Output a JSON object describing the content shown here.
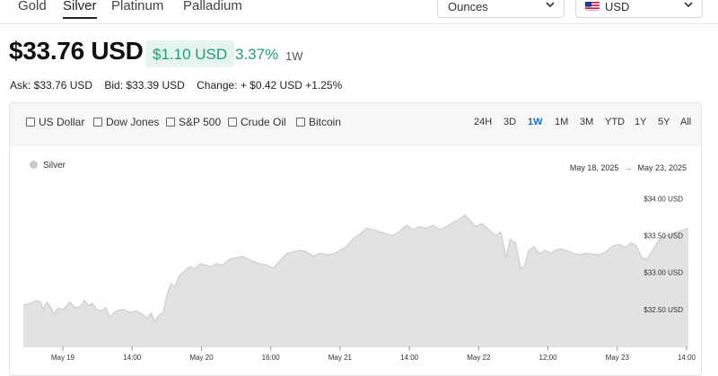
{
  "metal_tabs": [
    {
      "label": "Gold"
    },
    {
      "label": "Silver",
      "active": true
    },
    {
      "label": "Platinum"
    },
    {
      "label": "Palladium"
    }
  ],
  "unit_select": {
    "value": "Ounces"
  },
  "currency_select": {
    "value": "USD",
    "flag": "us-flag-icon"
  },
  "price": "$33.76 USD",
  "change": {
    "amount": "$1.10 USD",
    "percent": "3.37%",
    "period": "1W"
  },
  "quote": {
    "ask": "Ask: $33.76 USD",
    "bid": "Bid: $33.39 USD",
    "change": "Change: + $0.42 USD +1.25%"
  },
  "compare": [
    "US Dollar",
    "Dow Jones",
    "S&P 500",
    "Crude Oil",
    "Bitcoin"
  ],
  "ranges": [
    {
      "label": "24H"
    },
    {
      "label": "3D"
    },
    {
      "label": "1W",
      "active": true
    },
    {
      "label": "1M"
    },
    {
      "label": "3M"
    },
    {
      "label": "YTD"
    },
    {
      "label": "1Y"
    },
    {
      "label": "5Y"
    },
    {
      "label": "All"
    }
  ],
  "legend": "Silver",
  "date_range": {
    "from": "May 18, 2025",
    "to": "May 23, 2025"
  },
  "colors": {
    "accent_green": "#1f9d74",
    "accent_blue": "#1a73b8",
    "area_fill": "#e2e2e2",
    "area_line": "#d3d3d3"
  },
  "chart_data": {
    "type": "area",
    "series": [
      {
        "name": "Silver"
      }
    ],
    "y_ticks": [
      {
        "label": "$34.00 USD",
        "value": 34.0
      },
      {
        "label": "$33.50 USD",
        "value": 33.5
      },
      {
        "label": "$33.00 USD",
        "value": 33.0
      },
      {
        "label": "$32.50 USD",
        "value": 32.5
      }
    ],
    "x_ticks": [
      "May 19",
      "14:00",
      "May 20",
      "16:00",
      "May 21",
      "14:00",
      "May 22",
      "12:00",
      "May 23",
      "14:00"
    ],
    "ylim": [
      32.0,
      34.2
    ],
    "points": [
      [
        0.0,
        32.56
      ],
      [
        0.01,
        32.58
      ],
      [
        0.02,
        32.62
      ],
      [
        0.026,
        32.6
      ],
      [
        0.03,
        32.5
      ],
      [
        0.035,
        32.6
      ],
      [
        0.04,
        32.55
      ],
      [
        0.046,
        32.44
      ],
      [
        0.052,
        32.52
      ],
      [
        0.06,
        32.5
      ],
      [
        0.066,
        32.56
      ],
      [
        0.07,
        32.6
      ],
      [
        0.078,
        32.52
      ],
      [
        0.086,
        32.54
      ],
      [
        0.092,
        32.62
      ],
      [
        0.098,
        32.55
      ],
      [
        0.104,
        32.58
      ],
      [
        0.11,
        32.5
      ],
      [
        0.118,
        32.48
      ],
      [
        0.124,
        32.52
      ],
      [
        0.13,
        32.4
      ],
      [
        0.14,
        32.48
      ],
      [
        0.15,
        32.5
      ],
      [
        0.16,
        32.46
      ],
      [
        0.17,
        32.48
      ],
      [
        0.18,
        32.43
      ],
      [
        0.186,
        32.38
      ],
      [
        0.192,
        32.45
      ],
      [
        0.198,
        32.34
      ],
      [
        0.204,
        32.42
      ],
      [
        0.21,
        32.45
      ],
      [
        0.216,
        32.7
      ],
      [
        0.222,
        32.85
      ],
      [
        0.228,
        32.8
      ],
      [
        0.234,
        32.95
      ],
      [
        0.24,
        33.0
      ],
      [
        0.25,
        33.08
      ],
      [
        0.258,
        33.05
      ],
      [
        0.266,
        33.12
      ],
      [
        0.274,
        33.1
      ],
      [
        0.282,
        33.08
      ],
      [
        0.29,
        33.12
      ],
      [
        0.3,
        33.1
      ],
      [
        0.31,
        33.18
      ],
      [
        0.32,
        33.2
      ],
      [
        0.33,
        33.22
      ],
      [
        0.338,
        33.18
      ],
      [
        0.346,
        33.15
      ],
      [
        0.356,
        33.12
      ],
      [
        0.366,
        33.1
      ],
      [
        0.376,
        33.06
      ],
      [
        0.386,
        33.16
      ],
      [
        0.396,
        33.26
      ],
      [
        0.406,
        33.28
      ],
      [
        0.416,
        33.3
      ],
      [
        0.426,
        33.28
      ],
      [
        0.436,
        33.22
      ],
      [
        0.446,
        33.26
      ],
      [
        0.456,
        33.24
      ],
      [
        0.466,
        33.25
      ],
      [
        0.476,
        33.3
      ],
      [
        0.486,
        33.35
      ],
      [
        0.496,
        33.46
      ],
      [
        0.506,
        33.52
      ],
      [
        0.516,
        33.6
      ],
      [
        0.526,
        33.58
      ],
      [
        0.536,
        33.55
      ],
      [
        0.546,
        33.52
      ],
      [
        0.556,
        33.5
      ],
      [
        0.566,
        33.56
      ],
      [
        0.576,
        33.64
      ],
      [
        0.586,
        33.58
      ],
      [
        0.596,
        33.62
      ],
      [
        0.606,
        33.6
      ],
      [
        0.616,
        33.64
      ],
      [
        0.626,
        33.58
      ],
      [
        0.636,
        33.62
      ],
      [
        0.646,
        33.68
      ],
      [
        0.656,
        33.72
      ],
      [
        0.664,
        33.78
      ],
      [
        0.672,
        33.7
      ],
      [
        0.68,
        33.62
      ],
      [
        0.69,
        33.66
      ],
      [
        0.7,
        33.58
      ],
      [
        0.71,
        33.5
      ],
      [
        0.718,
        33.55
      ],
      [
        0.726,
        33.2
      ],
      [
        0.732,
        33.45
      ],
      [
        0.74,
        33.4
      ],
      [
        0.748,
        33.05
      ],
      [
        0.754,
        33.1
      ],
      [
        0.76,
        33.3
      ],
      [
        0.768,
        33.35
      ],
      [
        0.776,
        33.25
      ],
      [
        0.784,
        33.3
      ],
      [
        0.792,
        33.26
      ],
      [
        0.8,
        33.3
      ],
      [
        0.808,
        33.32
      ],
      [
        0.816,
        33.3
      ],
      [
        0.826,
        33.26
      ],
      [
        0.836,
        33.24
      ],
      [
        0.846,
        33.26
      ],
      [
        0.856,
        33.25
      ],
      [
        0.866,
        33.24
      ],
      [
        0.876,
        33.28
      ],
      [
        0.886,
        33.36
      ],
      [
        0.896,
        33.38
      ],
      [
        0.906,
        33.34
      ],
      [
        0.914,
        33.4
      ],
      [
        0.922,
        33.36
      ],
      [
        0.93,
        33.2
      ],
      [
        0.938,
        33.18
      ],
      [
        0.946,
        33.3
      ],
      [
        0.956,
        33.44
      ],
      [
        0.966,
        33.5
      ],
      [
        0.976,
        33.52
      ],
      [
        0.986,
        33.56
      ],
      [
        1.0,
        33.6
      ]
    ]
  }
}
